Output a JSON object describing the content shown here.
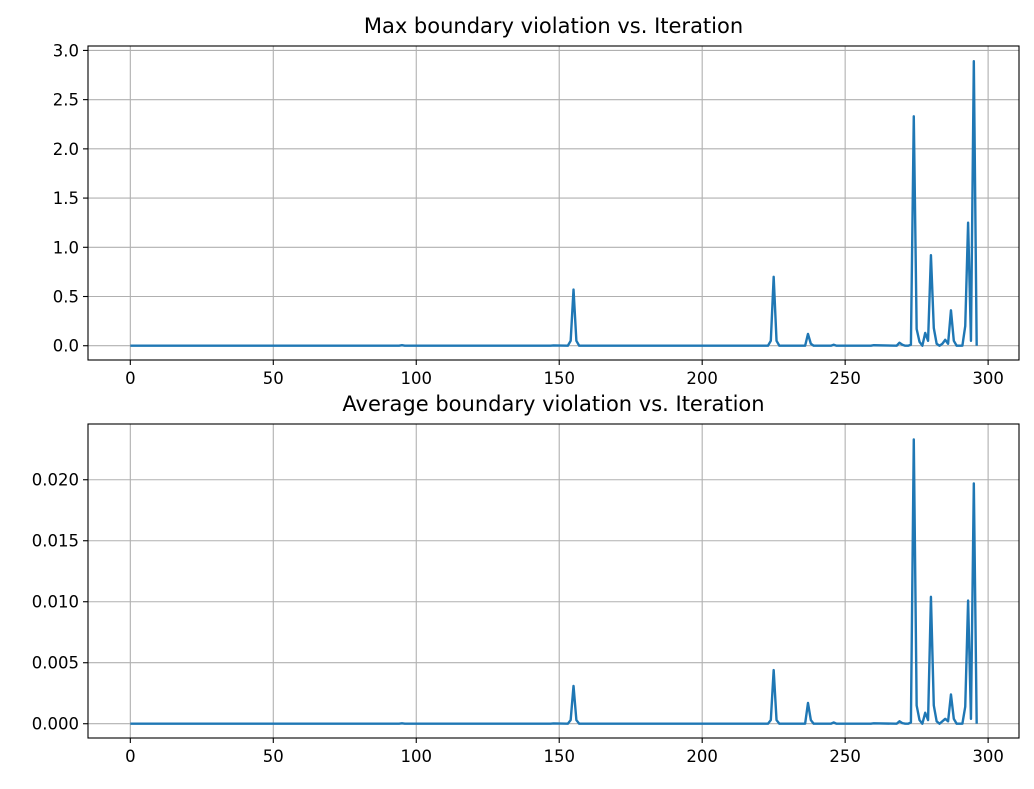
{
  "chart_data": [
    {
      "type": "line",
      "title": "Max boundary violation vs. Iteration",
      "xlabel": "",
      "ylabel": "",
      "xlim": [
        -14.8,
        310.8
      ],
      "ylim": [
        -0.145,
        3.045
      ],
      "xticks": [
        0,
        50,
        100,
        150,
        200,
        250,
        300
      ],
      "xtick_labels": [
        "0",
        "50",
        "100",
        "150",
        "200",
        "250",
        "300"
      ],
      "yticks": [
        0.0,
        0.5,
        1.0,
        1.5,
        2.0,
        2.5,
        3.0
      ],
      "ytick_labels": [
        "0.0",
        "0.5",
        "1.0",
        "1.5",
        "2.0",
        "2.5",
        "3.0"
      ],
      "grid": true,
      "color": "#1f77b4",
      "series": [
        {
          "x": [
            0,
            94,
            95,
            96,
            147,
            148,
            153,
            154,
            155,
            156,
            157,
            223,
            224,
            225,
            226,
            227,
            236,
            237,
            238,
            239,
            245,
            246,
            247,
            259,
            260,
            268,
            269,
            270,
            271,
            272,
            273,
            274,
            275,
            276,
            277,
            278,
            279,
            280,
            281,
            282,
            283,
            284,
            285,
            286,
            287,
            288,
            289,
            290,
            291,
            292,
            293,
            294,
            295,
            296
          ],
          "y": [
            0,
            0,
            0.005,
            0,
            0,
            0.003,
            0,
            0.05,
            0.57,
            0.05,
            0,
            0,
            0.05,
            0.7,
            0.05,
            0,
            0,
            0.12,
            0.02,
            0,
            0,
            0.01,
            0,
            0,
            0.005,
            0,
            0.03,
            0.01,
            0,
            0,
            0.01,
            2.33,
            0.17,
            0.04,
            0,
            0.13,
            0.05,
            0.92,
            0.18,
            0.02,
            0,
            0.02,
            0.06,
            0.02,
            0.36,
            0.05,
            0,
            0,
            0,
            0.2,
            1.25,
            0.05,
            2.89,
            0
          ]
        }
      ]
    },
    {
      "type": "line",
      "title": "Average boundary violation vs. Iteration",
      "xlabel": "",
      "ylabel": "",
      "xlim": [
        -14.8,
        310.8
      ],
      "ylim": [
        -0.00117,
        0.02457
      ],
      "xticks": [
        0,
        50,
        100,
        150,
        200,
        250,
        300
      ],
      "xtick_labels": [
        "0",
        "50",
        "100",
        "150",
        "200",
        "250",
        "300"
      ],
      "yticks": [
        0.0,
        0.005,
        0.01,
        0.015,
        0.02
      ],
      "ytick_labels": [
        "0.000",
        "0.005",
        "0.010",
        "0.015",
        "0.020"
      ],
      "grid": true,
      "color": "#1f77b4",
      "series": [
        {
          "x": [
            0,
            94,
            95,
            96,
            147,
            148,
            153,
            154,
            155,
            156,
            157,
            223,
            224,
            225,
            226,
            227,
            236,
            237,
            238,
            239,
            245,
            246,
            247,
            259,
            260,
            268,
            269,
            270,
            271,
            272,
            273,
            274,
            275,
            276,
            277,
            278,
            279,
            280,
            281,
            282,
            283,
            284,
            285,
            286,
            287,
            288,
            289,
            290,
            291,
            292,
            293,
            294,
            295,
            296
          ],
          "y": [
            0,
            0,
            3e-05,
            0,
            0,
            2e-05,
            0,
            0.0003,
            0.0031,
            0.0003,
            0,
            0,
            0.0003,
            0.0044,
            0.0003,
            0,
            0,
            0.0017,
            0.0003,
            0,
            0,
            0.0001,
            0,
            0,
            3e-05,
            0,
            0.0002,
            5e-05,
            0,
            0,
            0.0001,
            0.0233,
            0.0015,
            0.0003,
            0,
            0.0009,
            0.0003,
            0.0104,
            0.0015,
            0.0002,
            0,
            0.0002,
            0.0004,
            0.0002,
            0.0024,
            0.0004,
            0,
            0,
            0,
            0.0014,
            0.0101,
            0.0004,
            0.0197,
            0
          ]
        }
      ]
    }
  ]
}
